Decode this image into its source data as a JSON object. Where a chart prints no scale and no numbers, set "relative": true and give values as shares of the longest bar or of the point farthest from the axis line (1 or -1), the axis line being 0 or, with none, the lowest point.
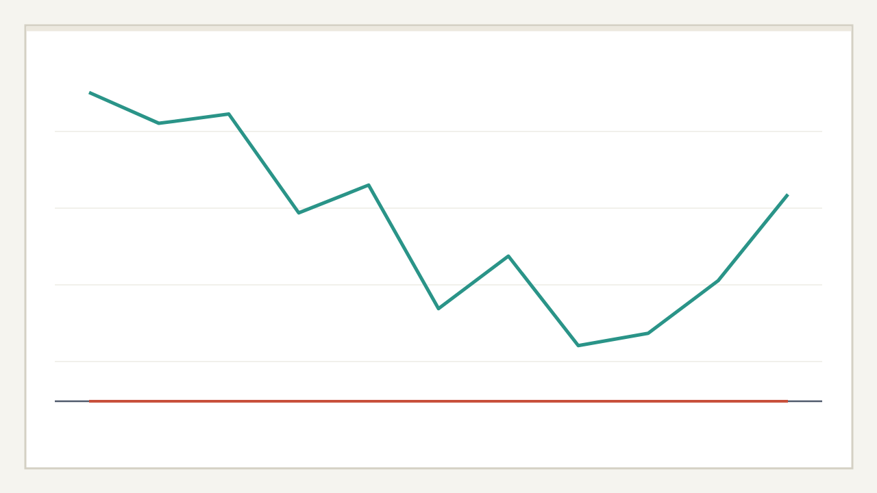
{
  "chart_data": {
    "type": "line",
    "relative": true,
    "categories": [
      null,
      null,
      null,
      null,
      null,
      null,
      null,
      null,
      null,
      null,
      null
    ],
    "series": [
      {
        "color": "#2a9488",
        "values": [
          1,
          0.9,
          0.93,
          0.61,
          0.7,
          0.3,
          0.47,
          0.18,
          0.22,
          0.39,
          0.67
        ]
      },
      {
        "color": "#c8503c",
        "values": [
          0,
          0,
          0,
          0,
          0,
          0,
          0,
          0,
          0,
          0,
          0
        ]
      }
    ],
    "grid": "y",
    "marker": "none",
    "line_style": "solid"
  }
}
